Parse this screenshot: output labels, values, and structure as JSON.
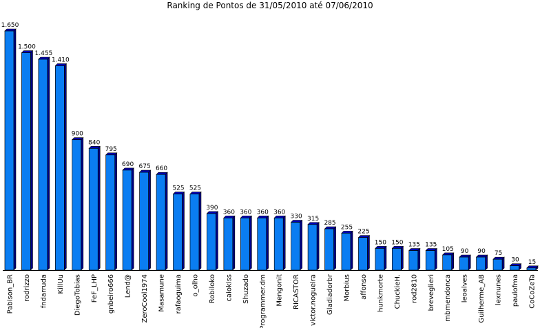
{
  "chart_data": {
    "type": "bar",
    "title": "Ranking de Pontos de 31/05/2010 até 07/06/2010",
    "xlabel": "",
    "ylabel": "",
    "ylim": [
      0,
      1700
    ],
    "grid": false,
    "legend": "none",
    "categories": [
      "Pabison_BR",
      "rodrizzo",
      "fndarruda",
      "KillUu",
      "DiegoTobias",
      "FeF_LHP",
      "gnbeiro666",
      "Lend@",
      "ZeroCool1974",
      "Masamune",
      "rafaoguima",
      "o_olho",
      "Robiloko",
      "caiokiss",
      "Shuzado",
      "Programmer.dm",
      "Mengonit",
      "RICASTOR",
      "victor.nogueira",
      "Gladiadorbr",
      "Morbius",
      "affonso",
      "hunkmorte",
      "ChuckieH.",
      "rod2810",
      "breveglieri",
      "mbmendonca",
      "leoalves",
      "Guilherme_AB",
      "lexnunes",
      "paulofma",
      "CoCoZeTa"
    ],
    "values": [
      1650,
      1500,
      1455,
      1410,
      900,
      840,
      795,
      690,
      675,
      660,
      525,
      525,
      390,
      360,
      360,
      360,
      360,
      330,
      315,
      285,
      255,
      225,
      150,
      150,
      135,
      135,
      105,
      90,
      90,
      75,
      30,
      15
    ],
    "value_labels": [
      "1.650",
      "1.500",
      "1.455",
      "1.410",
      "900",
      "840",
      "795",
      "690",
      "675",
      "660",
      "525",
      "525",
      "390",
      "360",
      "360",
      "360",
      "360",
      "330",
      "315",
      "285",
      "255",
      "225",
      "150",
      "150",
      "135",
      "135",
      "105",
      "90",
      "90",
      "75",
      "30",
      "15"
    ],
    "colors": {
      "bar_front": "#0a7df2",
      "bar_top": "#0000b8",
      "bar_side": "#000088",
      "bar_outline": "#000000"
    }
  }
}
